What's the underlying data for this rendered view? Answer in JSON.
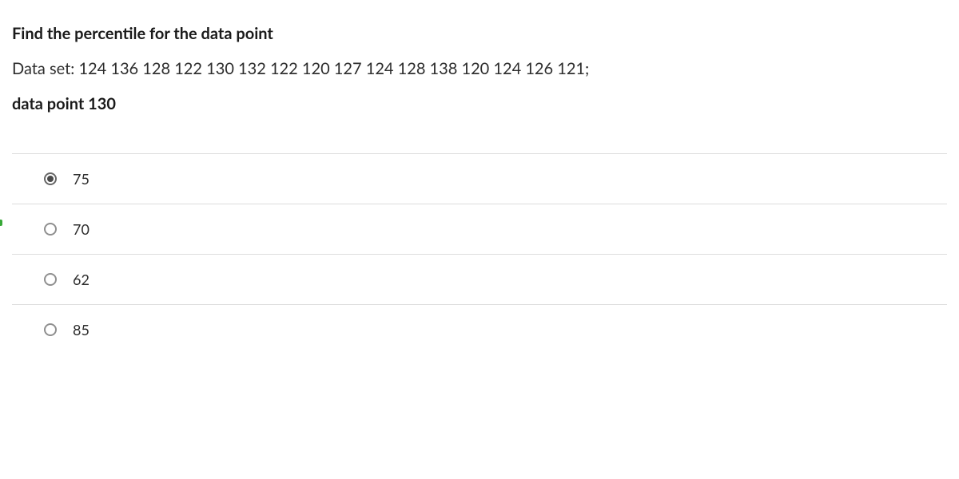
{
  "question": {
    "title": "Find the percentile for the data point",
    "dataset_label": "Data set: ",
    "dataset_values": "124 136 128 122 130 132 122 120 127 124 128 138 120 124 126 121;",
    "datapoint_label": "data point 130"
  },
  "answers": [
    {
      "label": "75",
      "selected": true
    },
    {
      "label": "70",
      "selected": false
    },
    {
      "label": "62",
      "selected": false
    },
    {
      "label": "85",
      "selected": false
    }
  ],
  "colors": {
    "text": "#2d2d2d",
    "border": "#dddddd",
    "radio_border": "#8f8f8f",
    "radio_fill": "#4a4a4a",
    "indicator": "#38a838",
    "background": "#ffffff"
  }
}
